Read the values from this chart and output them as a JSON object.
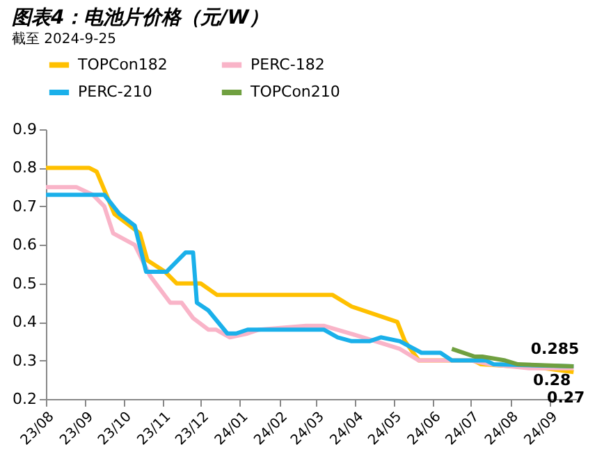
{
  "chart_data": {
    "type": "line",
    "title": "图表4：电池片价格（元/W）",
    "xlim": [
      "2023-08-01",
      "2024-09-22"
    ],
    "xticks": [
      {
        "value": "2023-08-01",
        "label": "23/08"
      },
      {
        "value": "2023-09-01",
        "label": "23/09"
      },
      {
        "value": "2023-10-01",
        "label": "23/10"
      },
      {
        "value": "2023-11-01",
        "label": "23/11"
      },
      {
        "value": "2023-12-01",
        "label": "23/12"
      },
      {
        "value": "2024-01-01",
        "label": "24/01"
      },
      {
        "value": "2024-02-01",
        "label": "24/02"
      },
      {
        "value": "2024-03-01",
        "label": "24/03"
      },
      {
        "value": "2024-04-01",
        "label": "24/04"
      },
      {
        "value": "2024-05-01",
        "label": "24/05"
      },
      {
        "value": "2024-06-01",
        "label": "24/06"
      },
      {
        "value": "2024-07-01",
        "label": "24/07"
      },
      {
        "value": "2024-08-01",
        "label": "24/08"
      },
      {
        "value": "2024-09-01",
        "label": "24/09"
      }
    ],
    "ylim": [
      0.2,
      0.9
    ],
    "yticks": [
      0.2,
      0.3,
      0.4,
      0.5,
      0.6,
      0.7,
      0.8,
      0.9
    ],
    "grid": false,
    "legend": "top",
    "marker": "none",
    "line_style": "solid",
    "series": [
      {
        "name": "TOPCon182",
        "color": "#ffc000",
        "x": [
          "2023-08-01",
          "2023-09-04",
          "2023-09-10",
          "2023-09-24",
          "2023-10-14",
          "2023-10-20",
          "2023-11-03",
          "2023-11-12",
          "2023-12-01",
          "2023-12-14",
          "2024-03-14",
          "2024-03-29",
          "2024-05-04",
          "2024-05-10",
          "2024-05-21",
          "2024-07-03",
          "2024-07-09",
          "2024-08-28",
          "2024-09-20"
        ],
        "values": [
          0.8,
          0.8,
          0.79,
          0.68,
          0.63,
          0.56,
          0.53,
          0.5,
          0.5,
          0.47,
          0.47,
          0.44,
          0.4,
          0.35,
          0.3,
          0.3,
          0.29,
          0.28,
          0.27
        ]
      },
      {
        "name": "PERC-182",
        "color": "#f9b4c8",
        "x": [
          "2023-08-01",
          "2023-08-25",
          "2023-09-07",
          "2023-09-16",
          "2023-09-23",
          "2023-10-10",
          "2023-10-22",
          "2023-11-07",
          "2023-11-16",
          "2023-11-25",
          "2023-12-07",
          "2023-12-13",
          "2023-12-24",
          "2024-01-07",
          "2024-01-16",
          "2024-02-22",
          "2024-03-07",
          "2024-03-28",
          "2024-04-07",
          "2024-05-06",
          "2024-05-21",
          "2024-07-01",
          "2024-07-16",
          "2024-08-16",
          "2024-09-20"
        ],
        "values": [
          0.75,
          0.75,
          0.73,
          0.7,
          0.63,
          0.6,
          0.52,
          0.45,
          0.45,
          0.41,
          0.38,
          0.38,
          0.36,
          0.37,
          0.38,
          0.39,
          0.39,
          0.37,
          0.36,
          0.33,
          0.3,
          0.3,
          0.29,
          0.28,
          0.28
        ]
      },
      {
        "name": "PERC-210",
        "color": "#1ab0ea",
        "x": [
          "2023-08-01",
          "2023-09-16",
          "2023-09-28",
          "2023-10-10",
          "2023-10-19",
          "2023-11-04",
          "2023-11-19",
          "2023-11-25",
          "2023-11-28",
          "2023-12-07",
          "2023-12-22",
          "2023-12-29",
          "2024-01-07",
          "2024-03-07",
          "2024-03-18",
          "2024-03-29",
          "2024-04-12",
          "2024-04-21",
          "2024-05-06",
          "2024-05-23",
          "2024-06-07",
          "2024-06-16",
          "2024-07-13",
          "2024-07-19",
          "2024-09-20"
        ],
        "values": [
          0.73,
          0.73,
          0.68,
          0.65,
          0.53,
          0.53,
          0.58,
          0.58,
          0.45,
          0.43,
          0.37,
          0.37,
          0.38,
          0.38,
          0.36,
          0.35,
          0.35,
          0.36,
          0.35,
          0.32,
          0.32,
          0.3,
          0.3,
          0.29,
          0.285
        ]
      },
      {
        "name": "TOPCon210",
        "color": "#70a040",
        "x": [
          "2024-06-16",
          "2024-07-04",
          "2024-07-10",
          "2024-07-28",
          "2024-08-07",
          "2024-09-20"
        ],
        "values": [
          0.33,
          0.31,
          0.31,
          0.3,
          0.29,
          0.285
        ]
      }
    ],
    "annotations": [
      {
        "text": "0.285",
        "x": "2024-09-20",
        "y": 0.285
      },
      {
        "text": "0.28",
        "x": "2024-09-20",
        "y": 0.28
      },
      {
        "text": "0.27",
        "x": "2024-09-20",
        "y": 0.27
      },
      "截至 2024-9-25"
    ]
  }
}
